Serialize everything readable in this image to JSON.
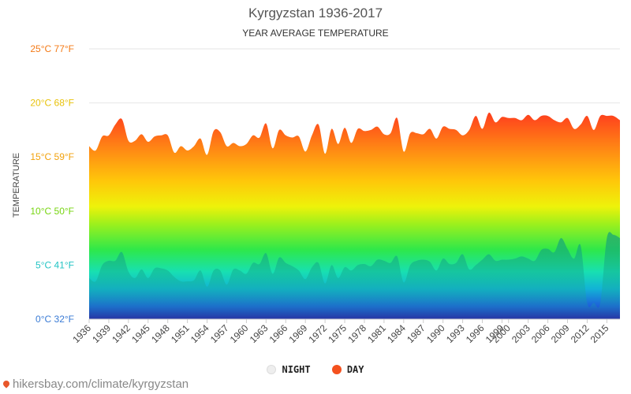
{
  "header": {
    "title": "Kyrgyzstan 1936-2017",
    "subtitle": "YEAR AVERAGE TEMPERATURE"
  },
  "legend": {
    "night_label": "NIGHT",
    "day_label": "DAY",
    "night_color": "#eeeeee",
    "day_color": "#f4511e"
  },
  "watermark": {
    "text": "hikersbay.com/climate/kyrgyzstan"
  },
  "chart_data": {
    "type": "area",
    "title": "Kyrgyzstan 1936-2017",
    "subtitle": "YEAR AVERAGE TEMPERATURE",
    "ylabel": "TEMPERATURE",
    "xlabel": "",
    "ylim": [
      0,
      25
    ],
    "xlim": [
      1936,
      2017
    ],
    "y_ticks": [
      {
        "value": 0,
        "label": "0°C 32°F",
        "color": "#3a7bd5"
      },
      {
        "value": 5,
        "label": "5°C 41°F",
        "color": "#22c4c4"
      },
      {
        "value": 10,
        "label": "10°C 50°F",
        "color": "#77d511"
      },
      {
        "value": 15,
        "label": "15°C 59°F",
        "color": "#f2a20c"
      },
      {
        "value": 20,
        "label": "20°C 68°F",
        "color": "#e8c20a"
      },
      {
        "value": 25,
        "label": "25°C 77°F",
        "color": "#f47a16"
      }
    ],
    "x_tick_labels": [
      "1936",
      "1939",
      "1942",
      "1945",
      "1948",
      "1951",
      "1954",
      "1957",
      "1960",
      "1963",
      "1966",
      "1969",
      "1972",
      "1975",
      "1978",
      "1981",
      "1984",
      "1987",
      "1990",
      "1993",
      "1996",
      "1999",
      "2000",
      "2003",
      "2006",
      "2009",
      "2012",
      "2015"
    ],
    "grid": true,
    "legend_position": "bottom",
    "series": [
      {
        "name": "DAY",
        "color": "#f4511e",
        "x": [
          1936,
          1937,
          1938,
          1939,
          1940,
          1941,
          1942,
          1943,
          1944,
          1945,
          1946,
          1947,
          1948,
          1949,
          1950,
          1951,
          1952,
          1953,
          1954,
          1955,
          1956,
          1957,
          1958,
          1959,
          1960,
          1961,
          1962,
          1963,
          1964,
          1965,
          1966,
          1967,
          1968,
          1969,
          1970,
          1971,
          1972,
          1973,
          1974,
          1975,
          1976,
          1977,
          1978,
          1979,
          1980,
          1981,
          1982,
          1983,
          1984,
          1985,
          1986,
          1987,
          1988,
          1989,
          1990,
          1991,
          1992,
          1993,
          1994,
          1995,
          1996,
          1997,
          1998,
          1999,
          2000,
          2001,
          2002,
          2003,
          2004,
          2005,
          2006,
          2007,
          2008,
          2009,
          2010,
          2011,
          2012,
          2013,
          2014,
          2015,
          2016,
          2017
        ],
        "values": [
          16.0,
          15.6,
          16.9,
          17.0,
          18.0,
          18.5,
          16.5,
          16.5,
          17.1,
          16.4,
          16.9,
          17.0,
          17.0,
          15.4,
          16.0,
          15.6,
          16.0,
          16.7,
          15.2,
          17.4,
          17.3,
          16.0,
          16.3,
          16.0,
          16.2,
          17.0,
          16.8,
          18.1,
          15.8,
          17.5,
          17.0,
          16.8,
          16.9,
          15.5,
          17.0,
          18.0,
          15.3,
          17.6,
          16.2,
          17.7,
          16.3,
          17.6,
          17.4,
          17.5,
          17.8,
          17.1,
          17.2,
          18.6,
          15.5,
          17.2,
          17.2,
          17.1,
          17.6,
          16.7,
          17.8,
          17.6,
          17.5,
          17.0,
          17.5,
          18.8,
          17.6,
          19.1,
          18.2,
          18.7,
          18.6,
          18.6,
          18.4,
          18.9,
          18.4,
          18.8,
          18.8,
          18.4,
          18.2,
          18.6,
          17.6,
          18.0,
          18.8,
          17.5,
          18.8,
          18.8,
          18.8,
          18.4
        ]
      },
      {
        "name": "NIGHT",
        "color": "#eeeeee",
        "x": [
          1936,
          1937,
          1938,
          1939,
          1940,
          1941,
          1942,
          1943,
          1944,
          1945,
          1946,
          1947,
          1948,
          1949,
          1950,
          1951,
          1952,
          1953,
          1954,
          1955,
          1956,
          1957,
          1958,
          1959,
          1960,
          1961,
          1962,
          1963,
          1964,
          1965,
          1966,
          1967,
          1968,
          1969,
          1970,
          1971,
          1972,
          1973,
          1974,
          1975,
          1976,
          1977,
          1978,
          1979,
          1980,
          1981,
          1982,
          1983,
          1984,
          1985,
          1986,
          1987,
          1988,
          1989,
          1990,
          1991,
          1992,
          1993,
          1994,
          1995,
          1996,
          1997,
          1998,
          1999,
          2000,
          2001,
          2002,
          2003,
          2004,
          2005,
          2006,
          2007,
          2008,
          2009,
          2010,
          2011,
          2012,
          2013,
          2014,
          2015,
          2016,
          2017
        ],
        "values": [
          3.8,
          3.5,
          5.0,
          5.4,
          5.4,
          6.2,
          4.4,
          3.8,
          4.6,
          3.8,
          4.7,
          4.7,
          4.5,
          3.9,
          3.5,
          3.5,
          3.6,
          4.5,
          3.0,
          4.5,
          4.5,
          3.2,
          4.6,
          4.5,
          4.2,
          5.2,
          5.1,
          6.1,
          4.2,
          5.7,
          5.2,
          4.9,
          4.5,
          3.7,
          4.8,
          5.2,
          3.3,
          5.0,
          3.8,
          4.8,
          4.5,
          5.0,
          5.1,
          4.9,
          5.5,
          5.4,
          5.2,
          5.8,
          3.4,
          5.0,
          5.4,
          5.5,
          5.3,
          4.5,
          5.6,
          5.1,
          5.2,
          6.0,
          4.6,
          5.0,
          5.5,
          6.0,
          5.4,
          5.5,
          5.5,
          5.6,
          5.8,
          5.6,
          5.4,
          6.4,
          6.5,
          6.2,
          7.5,
          6.5,
          5.6,
          6.8,
          1.5,
          1.5,
          1.5,
          7.5,
          7.8,
          7.5
        ]
      }
    ]
  }
}
